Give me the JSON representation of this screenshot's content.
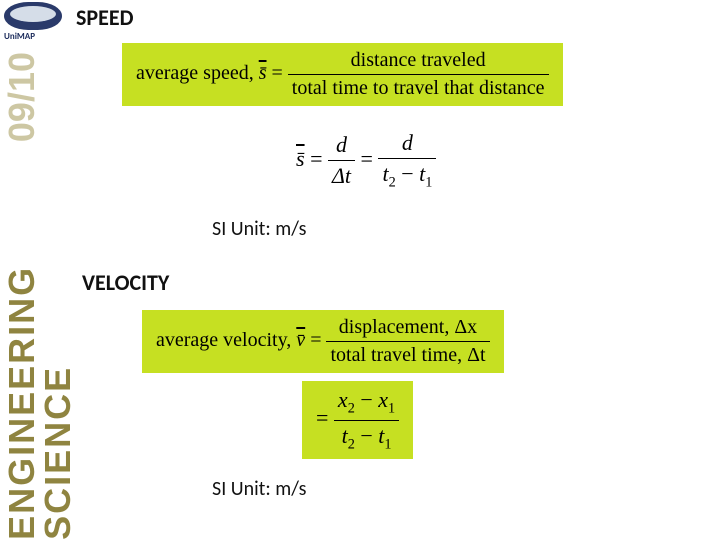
{
  "sidebar": {
    "logo_text": "UniMAP",
    "course_title": "ENGINEERING SCIENCE",
    "year": "09/10"
  },
  "speed": {
    "heading": "SPEED",
    "avg_label": "average speed, ",
    "symbol_html": "s̄",
    "eq": " = ",
    "numerator": "distance traveled",
    "denominator": "total time to travel that distance",
    "short": {
      "s": "s̄",
      "eq": " = ",
      "d": "d",
      "dt": "Δt",
      "t2": "t",
      "t1": "t",
      "s2": "2",
      "s1": "1"
    },
    "si_unit": "SI Unit: m/s"
  },
  "velocity": {
    "heading": "VELOCITY",
    "avg_label": "average velocity, ",
    "symbol_html": "v̄",
    "eq": " = ",
    "numerator": "displacement, Δx",
    "denominator": "total travel time, Δt",
    "short": {
      "eq": "= ",
      "x": "x",
      "t": "t",
      "s2": "2",
      "s1": "1"
    },
    "si_unit": "SI Unit: m/s"
  },
  "colors": {
    "highlight": "#c6e022",
    "sidebar_text": "#8f8440",
    "year_text": "#a59a58",
    "background": "#ffffff"
  }
}
